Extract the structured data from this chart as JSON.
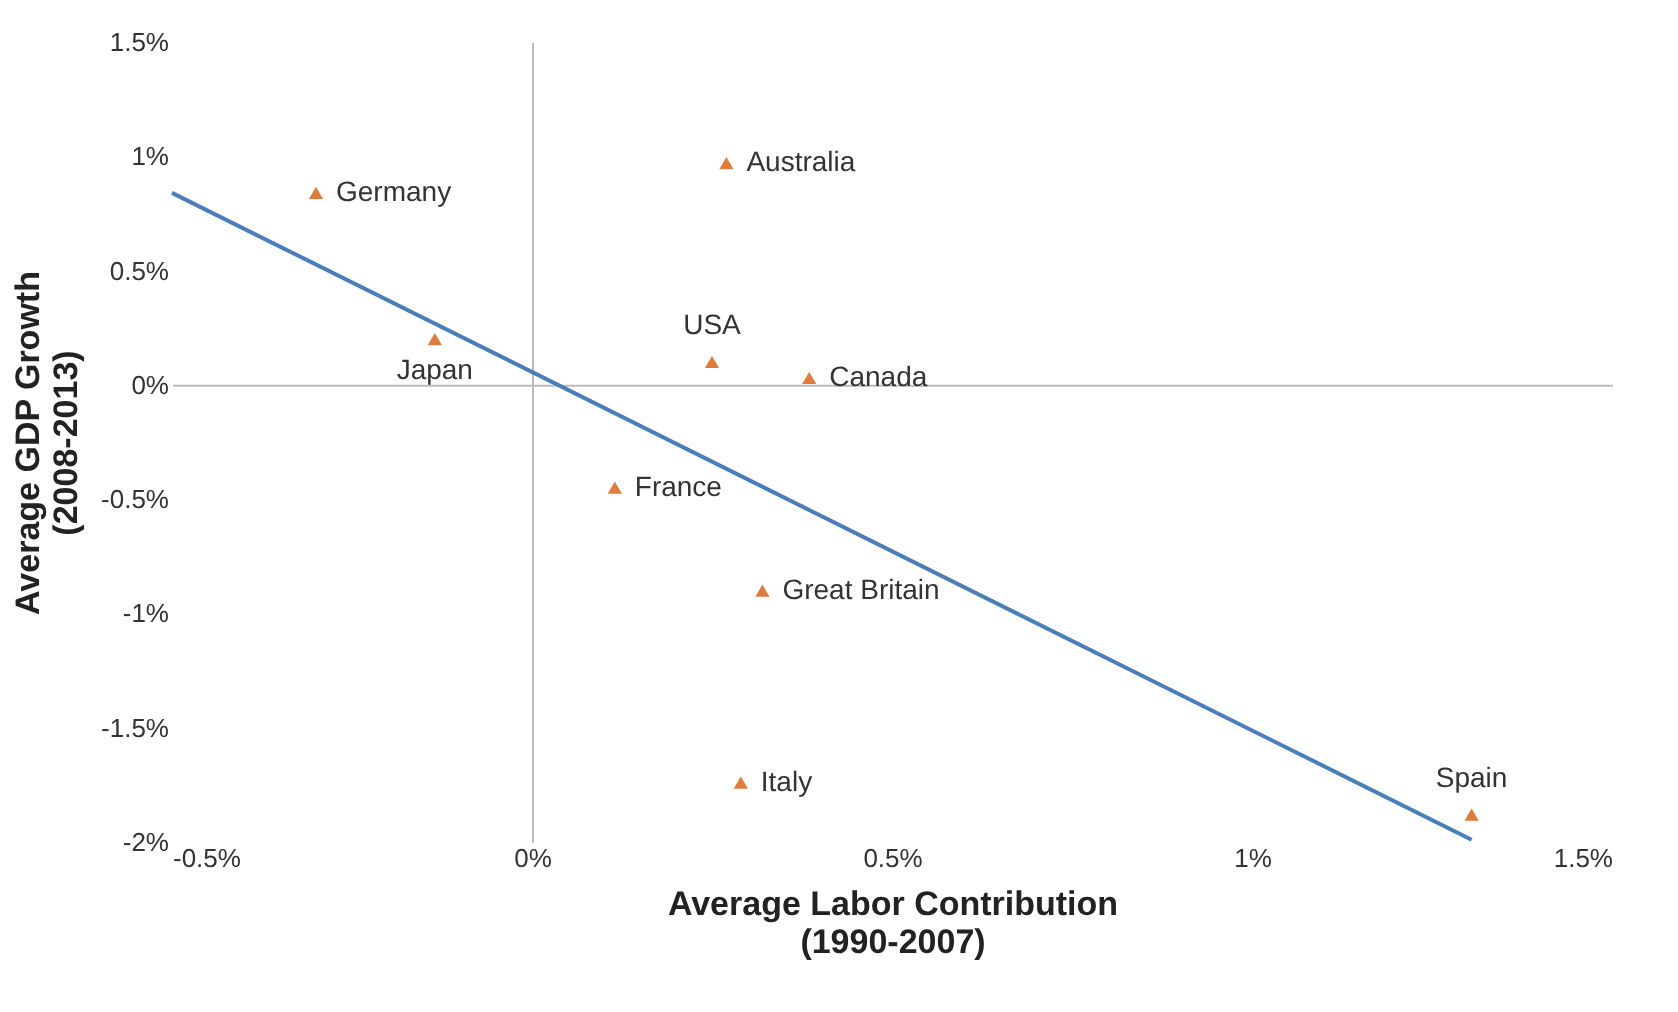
{
  "chart_data": {
    "type": "scatter",
    "xlabel": "Average Labor Contribution\n(1990-2007)",
    "ylabel": "Average GDP Growth\n(2008-2013)",
    "xlim": [
      -0.5,
      1.5
    ],
    "ylim": [
      -2,
      1.5
    ],
    "xticks": [
      {
        "value": -0.5,
        "label": "-0.5%"
      },
      {
        "value": 0,
        "label": "0%"
      },
      {
        "value": 0.5,
        "label": "0.5%"
      },
      {
        "value": 1,
        "label": "1%"
      },
      {
        "value": 1.5,
        "label": "1.5%"
      }
    ],
    "yticks": [
      {
        "value": -2,
        "label": "-2%"
      },
      {
        "value": -1.5,
        "label": "-1.5%"
      },
      {
        "value": -1,
        "label": "-1%"
      },
      {
        "value": -0.5,
        "label": "-0.5%"
      },
      {
        "value": 0,
        "label": "0%"
      },
      {
        "value": 0.5,
        "label": "0.5%"
      },
      {
        "value": 1,
        "label": "1%"
      },
      {
        "value": 1.5,
        "label": "1.5%"
      }
    ],
    "marker": "triangle",
    "series": [
      {
        "color": "#e07b39",
        "x": [
          -0.3,
          -0.135,
          0.27,
          0.25,
          0.385,
          0.115,
          0.32,
          0.29,
          1.305
        ],
        "values": [
          0.84,
          0.2,
          0.97,
          0.1,
          0.03,
          -0.45,
          -0.9,
          -1.74,
          -1.88
        ]
      },
      {
        "type": "line",
        "marker": "none",
        "color": "#4a7ebb",
        "x": [
          -0.5,
          1.305
        ],
        "values": [
          0.84,
          -1.99
        ]
      }
    ],
    "annotations": [
      {
        "text": "Germany",
        "x": -0.3,
        "y": 0.84
      },
      {
        "text": "Japan",
        "x": -0.135,
        "y": 0.2
      },
      {
        "text": "Australia",
        "x": 0.27,
        "y": 0.97
      },
      {
        "text": "USA",
        "x": 0.25,
        "y": 0.1
      },
      {
        "text": "Canada",
        "x": 0.385,
        "y": 0.03
      },
      {
        "text": "France",
        "x": 0.115,
        "y": -0.45
      },
      {
        "text": "Great Britain",
        "x": 0.32,
        "y": -0.9
      },
      {
        "text": "Italy",
        "x": 0.29,
        "y": -1.74
      },
      {
        "text": "Spain",
        "x": 1.305,
        "y": -1.88
      }
    ]
  }
}
